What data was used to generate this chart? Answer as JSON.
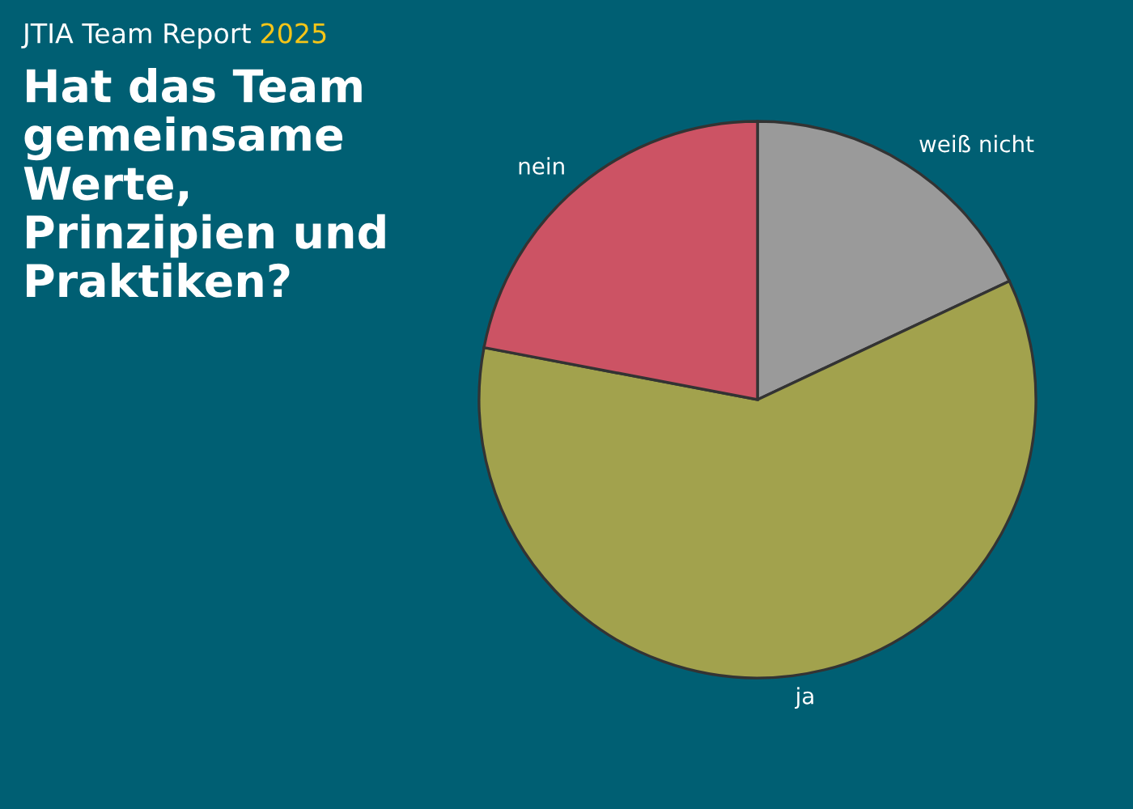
{
  "chart_data": {
    "type": "pie",
    "subtitle": "JTIA Team Report 2025",
    "title": "Hat das Team\ngemeinsame\nWerte,\nPrinzipien und\nPraktiken?",
    "categories": [
      "weiß nicht",
      "ja",
      "nein"
    ],
    "values": [
      18,
      60,
      22
    ],
    "colors": [
      "#9a9a9a",
      "#a2a24d",
      "#cc5364"
    ]
  }
}
